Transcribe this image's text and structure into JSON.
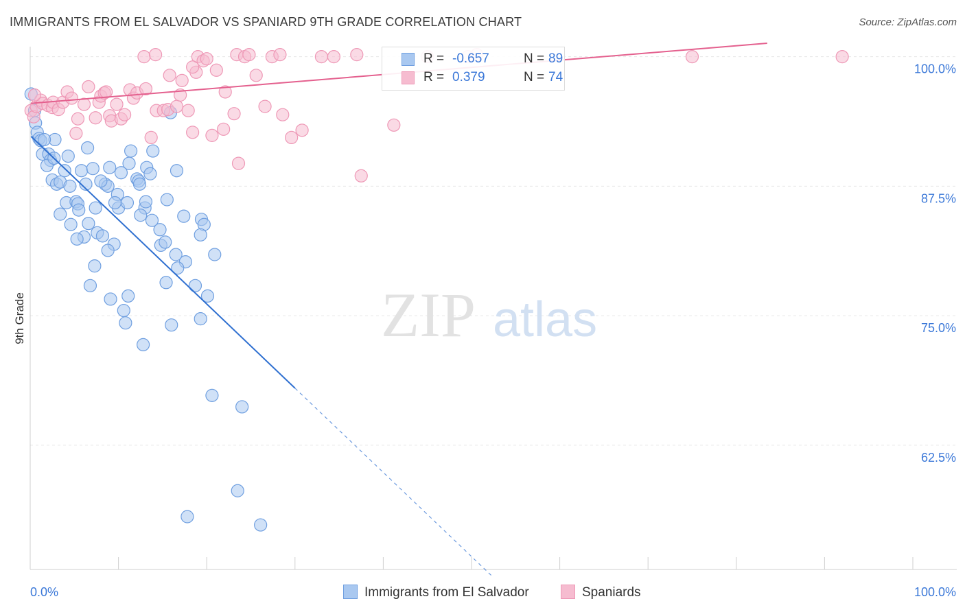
{
  "title": "IMMIGRANTS FROM EL SALVADOR VS SPANIARD 9TH GRADE CORRELATION CHART",
  "source": "Source: ZipAtlas.com",
  "watermark": {
    "zip": "ZIP",
    "atlas": "atlas"
  },
  "colors": {
    "blue_fill": "#a9c8f0",
    "blue_stroke": "#6f9fe0",
    "blue_line": "#2e6fd0",
    "pink_fill": "#f6bcd0",
    "pink_stroke": "#ee98b6",
    "pink_line": "#e4608e",
    "tick_label": "#3b78d8",
    "grid": "#e6e6e6"
  },
  "legend": {
    "rows": [
      {
        "series": "Immigrants from El Salvador",
        "r_label": "R =",
        "r_value": "-0.657",
        "n_label": "N =",
        "n_value": "89"
      },
      {
        "series": "Spaniards",
        "r_label": "R =",
        "r_value": "0.379",
        "n_label": "N =",
        "n_value": "74"
      }
    ]
  },
  "chart_data": {
    "type": "scatter",
    "ylabel": "9th Grade",
    "xlabel": "",
    "xlim": [
      0,
      100
    ],
    "ylim": [
      50.5,
      101.5
    ],
    "y_ticks": [
      {
        "value": 100.0,
        "label": "100.0%"
      },
      {
        "value": 87.5,
        "label": "87.5%"
      },
      {
        "value": 75.0,
        "label": "75.0%"
      },
      {
        "value": 62.5,
        "label": "62.5%"
      }
    ],
    "x_tick_labels": {
      "left": "0.0%",
      "right": "100.0%"
    },
    "legend_position": "top-center",
    "grid": true,
    "series": [
      {
        "name": "Immigrants from El Salvador",
        "color": "blue",
        "trend": {
          "x0": 0.1,
          "y0": 92.3,
          "x1": 30.0,
          "y1": 68.0,
          "dash_to_x": 52.5
        },
        "points": [
          [
            0.1,
            96.4
          ],
          [
            0.5,
            94.8
          ],
          [
            0.6,
            93.6
          ],
          [
            0.8,
            92.7
          ],
          [
            1.0,
            92.1
          ],
          [
            1.2,
            91.9
          ],
          [
            2.8,
            92.0
          ],
          [
            1.4,
            90.6
          ],
          [
            2.1,
            90.6
          ],
          [
            4.3,
            90.4
          ],
          [
            2.3,
            90.0
          ],
          [
            1.9,
            89.5
          ],
          [
            6.5,
            91.2
          ],
          [
            11.4,
            90.9
          ],
          [
            13.9,
            90.9
          ],
          [
            3.9,
            89.0
          ],
          [
            5.8,
            89.0
          ],
          [
            7.1,
            89.2
          ],
          [
            9.0,
            89.3
          ],
          [
            10.3,
            88.8
          ],
          [
            11.2,
            89.7
          ],
          [
            13.2,
            89.3
          ],
          [
            13.6,
            88.7
          ],
          [
            16.6,
            89.0
          ],
          [
            2.5,
            88.1
          ],
          [
            3.0,
            87.7
          ],
          [
            3.4,
            87.9
          ],
          [
            4.5,
            87.5
          ],
          [
            6.3,
            87.7
          ],
          [
            8.5,
            87.7
          ],
          [
            8.8,
            87.5
          ],
          [
            12.1,
            88.2
          ],
          [
            12.3,
            88.0
          ],
          [
            12.4,
            87.7
          ],
          [
            9.9,
            86.7
          ],
          [
            4.1,
            85.9
          ],
          [
            5.2,
            86.0
          ],
          [
            5.4,
            85.8
          ],
          [
            7.4,
            85.4
          ],
          [
            10.0,
            85.4
          ],
          [
            11.0,
            85.9
          ],
          [
            13.0,
            85.4
          ],
          [
            13.1,
            86.0
          ],
          [
            15.5,
            86.2
          ],
          [
            3.4,
            84.8
          ],
          [
            5.5,
            85.2
          ],
          [
            12.5,
            84.7
          ],
          [
            13.8,
            84.2
          ],
          [
            17.4,
            84.6
          ],
          [
            19.4,
            84.3
          ],
          [
            19.7,
            83.8
          ],
          [
            4.6,
            83.8
          ],
          [
            6.6,
            83.9
          ],
          [
            14.7,
            83.3
          ],
          [
            7.6,
            83.0
          ],
          [
            8.2,
            82.7
          ],
          [
            6.1,
            82.6
          ],
          [
            5.3,
            82.4
          ],
          [
            9.5,
            81.9
          ],
          [
            14.8,
            81.8
          ],
          [
            15.3,
            82.1
          ],
          [
            19.3,
            82.8
          ],
          [
            8.8,
            81.3
          ],
          [
            16.5,
            80.9
          ],
          [
            17.6,
            80.2
          ],
          [
            20.9,
            80.9
          ],
          [
            7.3,
            79.8
          ],
          [
            16.7,
            79.6
          ],
          [
            6.8,
            77.9
          ],
          [
            15.4,
            78.2
          ],
          [
            18.7,
            77.9
          ],
          [
            20.1,
            76.9
          ],
          [
            11.1,
            76.9
          ],
          [
            9.1,
            76.6
          ],
          [
            10.6,
            75.5
          ],
          [
            10.8,
            74.3
          ],
          [
            16.0,
            74.1
          ],
          [
            19.3,
            74.7
          ],
          [
            12.8,
            72.2
          ],
          [
            20.6,
            67.3
          ],
          [
            24.0,
            66.2
          ],
          [
            23.5,
            58.1
          ],
          [
            17.8,
            55.6
          ],
          [
            26.1,
            54.8
          ],
          [
            15.9,
            94.6
          ],
          [
            1.6,
            92.0
          ],
          [
            2.7,
            90.2
          ],
          [
            8.0,
            88.0
          ],
          [
            9.6,
            85.9
          ]
        ]
      },
      {
        "name": "Spaniards",
        "color": "pink",
        "trend": {
          "x0": 0.1,
          "y0": 95.5,
          "x1": 83.5,
          "y1": 101.3
        },
        "points": [
          [
            0.1,
            94.8
          ],
          [
            0.4,
            94.2
          ],
          [
            0.7,
            95.2
          ],
          [
            1.2,
            95.8
          ],
          [
            1.4,
            95.5
          ],
          [
            2.0,
            95.3
          ],
          [
            2.5,
            95.1
          ],
          [
            2.6,
            95.6
          ],
          [
            3.2,
            94.9
          ],
          [
            3.7,
            95.6
          ],
          [
            4.2,
            96.6
          ],
          [
            4.7,
            96.0
          ],
          [
            5.4,
            94.0
          ],
          [
            5.2,
            92.6
          ],
          [
            6.1,
            95.4
          ],
          [
            6.6,
            97.1
          ],
          [
            7.4,
            94.1
          ],
          [
            7.8,
            95.6
          ],
          [
            8.0,
            96.2
          ],
          [
            8.4,
            96.5
          ],
          [
            8.6,
            96.6
          ],
          [
            9.0,
            94.3
          ],
          [
            9.2,
            93.8
          ],
          [
            9.8,
            95.4
          ],
          [
            10.3,
            94.0
          ],
          [
            10.7,
            94.4
          ],
          [
            11.3,
            96.8
          ],
          [
            11.7,
            96.0
          ],
          [
            12.1,
            96.5
          ],
          [
            13.1,
            96.9
          ],
          [
            13.7,
            92.2
          ],
          [
            14.3,
            94.8
          ],
          [
            15.1,
            94.8
          ],
          [
            15.6,
            94.9
          ],
          [
            16.6,
            95.2
          ],
          [
            17.0,
            96.3
          ],
          [
            17.2,
            97.7
          ],
          [
            17.9,
            94.8
          ],
          [
            18.4,
            92.7
          ],
          [
            18.8,
            98.5
          ],
          [
            19.0,
            100.0
          ],
          [
            19.6,
            99.6
          ],
          [
            20.6,
            92.4
          ],
          [
            21.1,
            98.7
          ],
          [
            21.9,
            93.0
          ],
          [
            22.1,
            96.6
          ],
          [
            23.1,
            94.5
          ],
          [
            23.6,
            89.7
          ],
          [
            12.9,
            100.0
          ],
          [
            14.2,
            100.2
          ],
          [
            15.8,
            98.2
          ],
          [
            18.4,
            99.0
          ],
          [
            20.0,
            99.8
          ],
          [
            23.4,
            100.2
          ],
          [
            24.3,
            100.0
          ],
          [
            24.8,
            100.2
          ],
          [
            25.6,
            98.2
          ],
          [
            26.6,
            95.2
          ],
          [
            27.4,
            100.0
          ],
          [
            28.3,
            100.2
          ],
          [
            28.6,
            94.4
          ],
          [
            29.6,
            92.2
          ],
          [
            30.8,
            92.9
          ],
          [
            33.0,
            100.0
          ],
          [
            34.4,
            100.0
          ],
          [
            37.0,
            100.2
          ],
          [
            37.5,
            88.5
          ],
          [
            41.2,
            93.4
          ],
          [
            45.0,
            100.0
          ],
          [
            49.6,
            100.0
          ],
          [
            50.6,
            100.2
          ],
          [
            75.0,
            100.0
          ],
          [
            92.0,
            100.0
          ],
          [
            0.5,
            96.3
          ]
        ]
      }
    ]
  },
  "bottom_legend": [
    "Immigrants from El Salvador",
    "Spaniards"
  ]
}
